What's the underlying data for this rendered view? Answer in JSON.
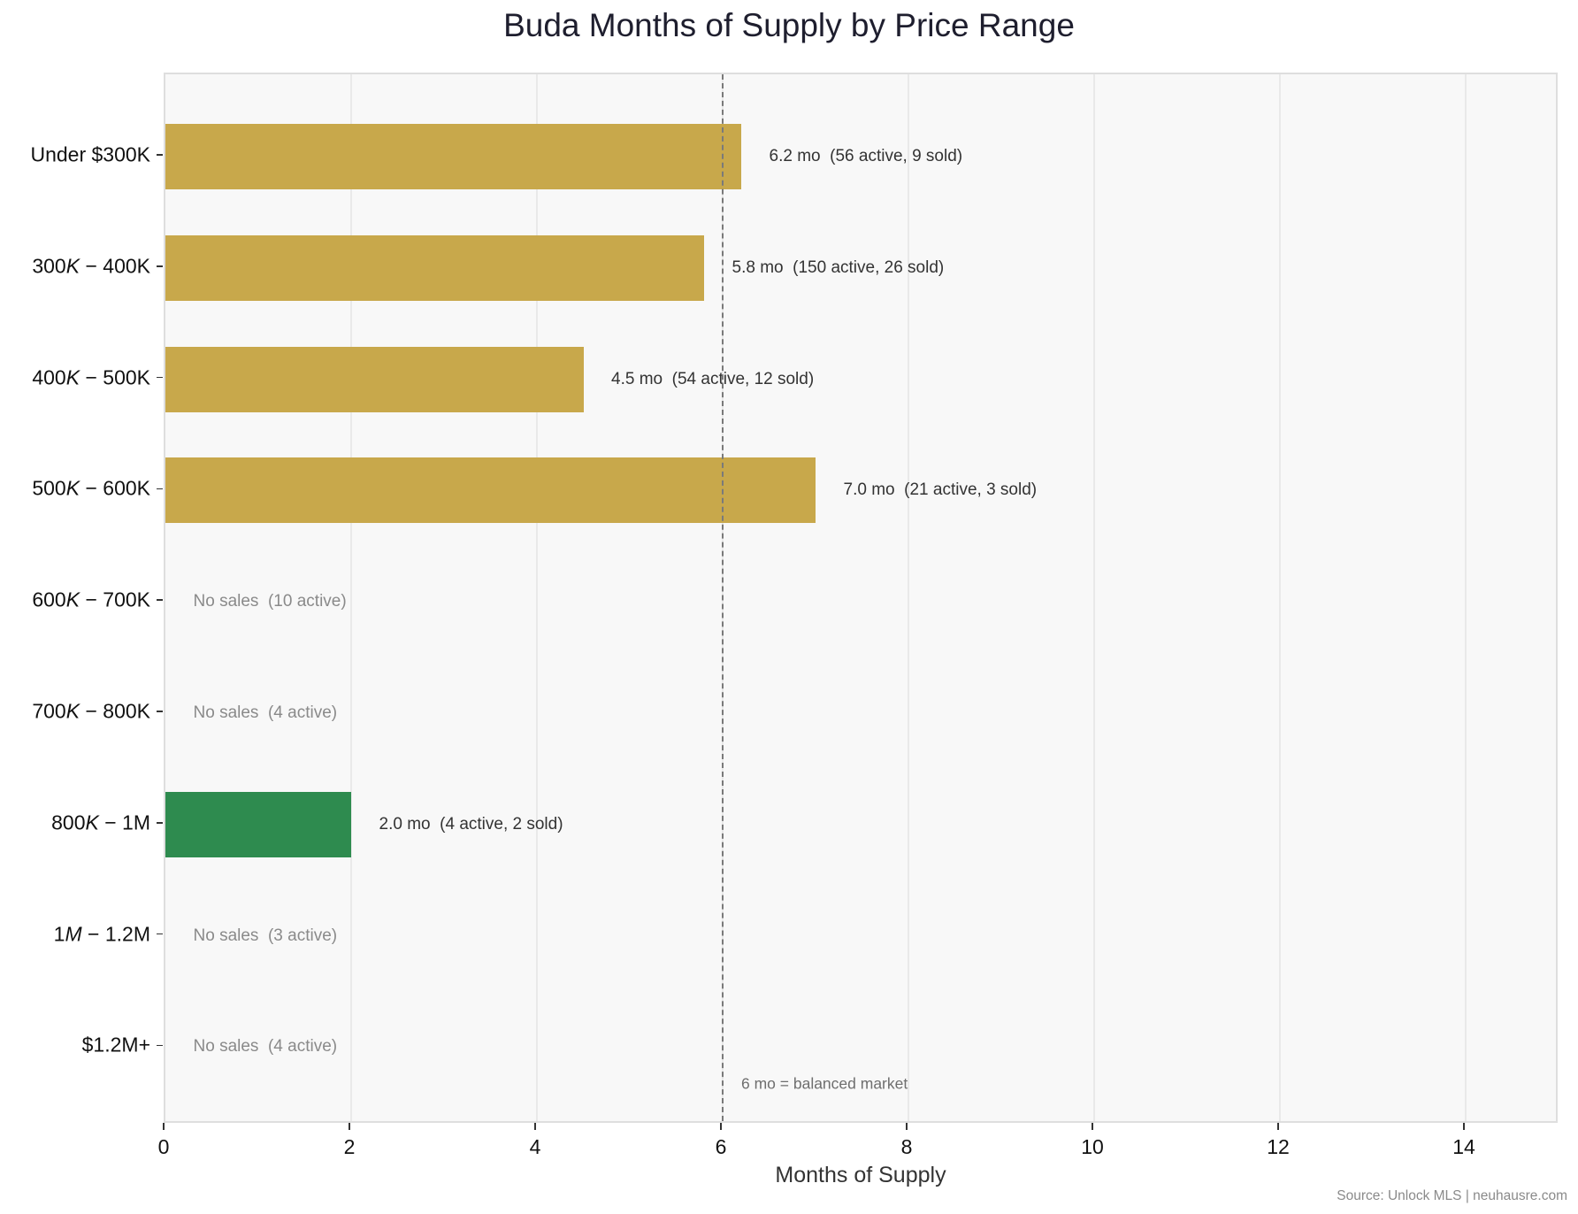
{
  "title": "Buda Months of Supply by Price Range",
  "x_axis": {
    "title": "Months of Supply",
    "ticks": [
      "0",
      "2",
      "4",
      "6",
      "8",
      "10",
      "12",
      "14"
    ]
  },
  "reference": {
    "value": 6,
    "label": "6 mo = balanced market"
  },
  "source": "Source: Unlock MLS | neuhausre.com",
  "colors": {
    "default_bar": "#C8A84B",
    "highlight_bar": "#2E8B4F",
    "plot_bg": "#F8F8F8"
  },
  "rows": [
    {
      "label_parts": [
        "Under $300K"
      ],
      "label_display": "Under $300K",
      "value": 6.2,
      "annotation": "6.2 mo  (56 active, 9 sold)",
      "color": "#C8A84B",
      "has_sales": true
    },
    {
      "label_parts": [
        "300",
        "K",
        " − 400K"
      ],
      "label_display": "300K − 400K",
      "value": 5.8,
      "annotation": "5.8 mo  (150 active, 26 sold)",
      "color": "#C8A84B",
      "has_sales": true
    },
    {
      "label_parts": [
        "400",
        "K",
        " − 500K"
      ],
      "label_display": "400K − 500K",
      "value": 4.5,
      "annotation": "4.5 mo  (54 active, 12 sold)",
      "color": "#C8A84B",
      "has_sales": true
    },
    {
      "label_parts": [
        "500",
        "K",
        " − 600K"
      ],
      "label_display": "500K − 600K",
      "value": 7.0,
      "annotation": "7.0 mo  (21 active, 3 sold)",
      "color": "#C8A84B",
      "has_sales": true
    },
    {
      "label_parts": [
        "600",
        "K",
        " − 700K"
      ],
      "label_display": "600K − 700K",
      "value": 0,
      "annotation": "No sales  (10 active)",
      "color": "#C8A84B",
      "has_sales": false
    },
    {
      "label_parts": [
        "700",
        "K",
        " − 800K"
      ],
      "label_display": "700K − 800K",
      "value": 0,
      "annotation": "No sales  (4 active)",
      "color": "#C8A84B",
      "has_sales": false
    },
    {
      "label_parts": [
        "800",
        "K",
        " − 1M"
      ],
      "label_display": "800K − 1M",
      "value": 2.0,
      "annotation": "2.0 mo  (4 active, 2 sold)",
      "color": "#2E8B4F",
      "has_sales": true
    },
    {
      "label_parts": [
        "1",
        "M",
        " − 1.2M"
      ],
      "label_display": "1M − 1.2M",
      "value": 0,
      "annotation": "No sales  (3 active)",
      "color": "#C8A84B",
      "has_sales": false
    },
    {
      "label_parts": [
        "$1.2M+"
      ],
      "label_display": "$1.2M+",
      "value": 0,
      "annotation": "No sales  (4 active)",
      "color": "#C8A84B",
      "has_sales": false
    }
  ],
  "chart_data": {
    "type": "bar",
    "orientation": "horizontal",
    "title": "Buda Months of Supply by Price Range",
    "xlabel": "Months of Supply",
    "ylabel": "",
    "categories": [
      "Under $300K",
      "300K-400K",
      "400K-500K",
      "500K-600K",
      "600K-700K",
      "700K-800K",
      "800K-1M",
      "1M-1.2M",
      "$1.2M+"
    ],
    "values": [
      6.2,
      5.8,
      4.5,
      7.0,
      null,
      null,
      2.0,
      null,
      null
    ],
    "active_listings": [
      56,
      150,
      54,
      21,
      10,
      4,
      4,
      3,
      4
    ],
    "sold": [
      9,
      26,
      12,
      3,
      0,
      0,
      2,
      0,
      0
    ],
    "data_labels": [
      "6.2 mo  (56 active, 9 sold)",
      "5.8 mo  (150 active, 26 sold)",
      "4.5 mo  (54 active, 12 sold)",
      "7.0 mo  (21 active, 3 sold)",
      "No sales  (10 active)",
      "No sales  (4 active)",
      "2.0 mo  (4 active, 2 sold)",
      "No sales  (3 active)",
      "No sales  (4 active)"
    ],
    "bar_colors": [
      "#C8A84B",
      "#C8A84B",
      "#C8A84B",
      "#C8A84B",
      "#C8A84B",
      "#C8A84B",
      "#2E8B4F",
      "#C8A84B",
      "#C8A84B"
    ],
    "xlim": [
      0,
      15
    ],
    "xticks": [
      0,
      2,
      4,
      6,
      8,
      10,
      12,
      14
    ],
    "reference_line": {
      "x": 6,
      "style": "dashed",
      "label": "6 mo = balanced market"
    },
    "grid": {
      "x": true,
      "y": false
    },
    "legend": null,
    "footnote": "Source: Unlock MLS | neuhausre.com"
  }
}
